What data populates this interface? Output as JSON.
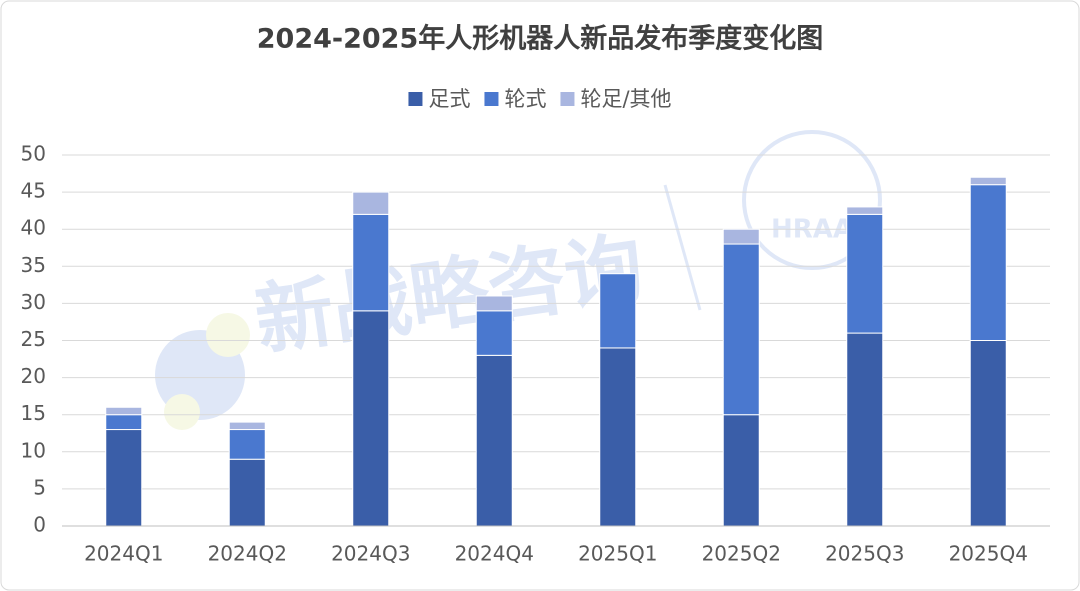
{
  "chart_data": {
    "type": "stacked_bar",
    "title": "2024-2025年人形机器人新品发布季度变化图",
    "categories": [
      "2024Q1",
      "2024Q2",
      "2024Q3",
      "2024Q4",
      "2025Q1",
      "2025Q2",
      "2025Q3",
      "2025Q4"
    ],
    "series": [
      {
        "name": "足式",
        "color": "#3a5ea8",
        "values": [
          13,
          9,
          29,
          23,
          24,
          15,
          26,
          25
        ]
      },
      {
        "name": "轮式",
        "color": "#4a78cf",
        "values": [
          2,
          4,
          13,
          6,
          10,
          23,
          16,
          21
        ]
      },
      {
        "name": "轮足/其他",
        "color": "#a9b6e0",
        "values": [
          1,
          1,
          3,
          2,
          0,
          2,
          1,
          1
        ]
      }
    ],
    "ylim": [
      0,
      50
    ],
    "yticks": [
      0,
      5,
      10,
      15,
      20,
      25,
      30,
      35,
      40,
      45,
      50
    ],
    "grid": true,
    "legend": "top",
    "watermarks": [
      "新战略咨询",
      "HRAA"
    ]
  }
}
